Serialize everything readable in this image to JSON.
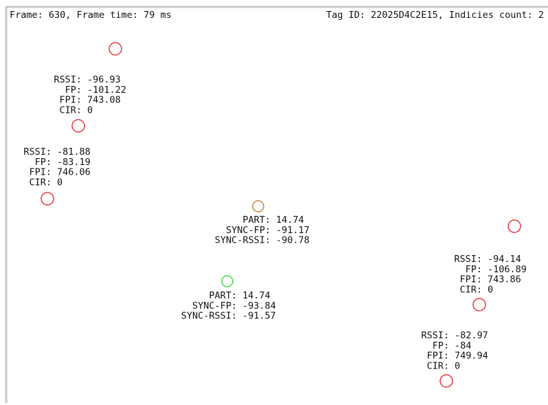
{
  "header": {
    "left": "Frame: 630, Frame time: 79 ms",
    "right": "Tag ID: 22025D4C2E15, Indicies count: 2"
  },
  "blocks": [
    {
      "lines": [
        {
          "label": "RSSI:",
          "value": -96.93
        },
        {
          "label": "FP:",
          "value": -101.22
        },
        {
          "label": "FPI:",
          "value": 743.08
        },
        {
          "label": "CIR:",
          "value": 0
        }
      ]
    },
    {
      "lines": [
        {
          "label": "RSSI:",
          "value": -81.88
        },
        {
          "label": "FP:",
          "value": -83.19
        },
        {
          "label": "FPI:",
          "value": 746.06
        },
        {
          "label": "CIR:",
          "value": 0
        }
      ]
    },
    {
      "lines": [
        {
          "label": "PART:",
          "value": 14.74
        },
        {
          "label": "SYNC-FP:",
          "value": -91.17
        },
        {
          "label": "SYNC-RSSI:",
          "value": -90.78
        }
      ]
    },
    {
      "lines": [
        {
          "label": "PART:",
          "value": 14.74
        },
        {
          "label": "SYNC-FP:",
          "value": -93.84
        },
        {
          "label": "SYNC-RSSI:",
          "value": -91.57
        }
      ]
    },
    {
      "lines": [
        {
          "label": "RSSI:",
          "value": -94.14
        },
        {
          "label": "FP:",
          "value": -106.89
        },
        {
          "label": "FPI:",
          "value": 743.86
        },
        {
          "label": "CIR:",
          "value": 0
        }
      ]
    },
    {
      "lines": [
        {
          "label": "RSSI:",
          "value": -82.97
        },
        {
          "label": "FP:",
          "value": -84
        },
        {
          "label": "FPI:",
          "value": 749.94
        },
        {
          "label": "CIR:",
          "value": 0
        }
      ]
    }
  ]
}
